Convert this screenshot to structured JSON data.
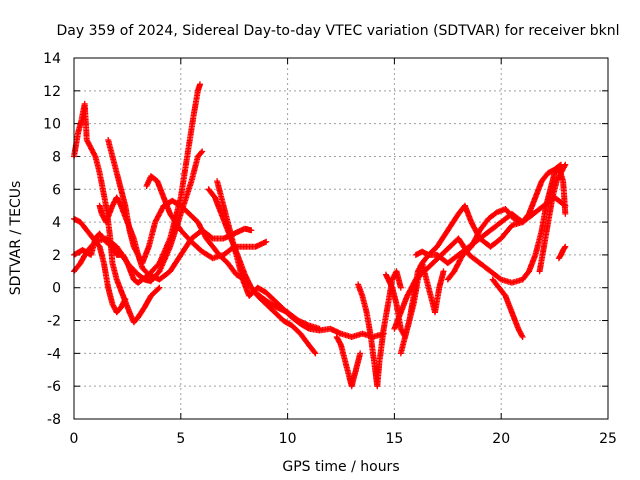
{
  "chart_data": {
    "type": "scatter",
    "title": "Day 359 of 2024, Sidereal Day-to-day VTEC variation (SDTVAR) for receiver bknl",
    "xlabel": "GPS time / hours",
    "ylabel": "SDTVAR / TECUs",
    "xlim": [
      0,
      25
    ],
    "ylim": [
      -8,
      14
    ],
    "xticks": [
      0,
      5,
      10,
      15,
      20,
      25
    ],
    "yticks": [
      -8,
      -6,
      -4,
      -2,
      0,
      2,
      4,
      6,
      8,
      10,
      12,
      14
    ],
    "grid": true,
    "marker": "+",
    "color": "#ff0000",
    "series": [
      {
        "name": "track-1",
        "points": [
          [
            0.0,
            8.0
          ],
          [
            0.2,
            9.5
          ],
          [
            0.35,
            10.2
          ],
          [
            0.5,
            11.2
          ],
          [
            0.6,
            9.0
          ],
          [
            0.8,
            8.5
          ],
          [
            1.0,
            8.0
          ],
          [
            1.2,
            7.0
          ],
          [
            1.5,
            5.0
          ],
          [
            1.7,
            3.0
          ],
          [
            1.8,
            1.5
          ],
          [
            2.0,
            0.5
          ],
          [
            2.3,
            -0.5
          ],
          [
            2.6,
            -1.5
          ],
          [
            2.8,
            -2.1
          ],
          [
            3.0,
            -1.8
          ],
          [
            3.3,
            -1.2
          ],
          [
            3.6,
            -0.5
          ],
          [
            4.0,
            0.0
          ]
        ]
      },
      {
        "name": "track-2",
        "points": [
          [
            0.0,
            4.2
          ],
          [
            0.3,
            4.0
          ],
          [
            0.6,
            3.5
          ],
          [
            0.9,
            3.0
          ],
          [
            1.2,
            2.5
          ],
          [
            1.4,
            1.5
          ],
          [
            1.6,
            0.0
          ],
          [
            1.8,
            -1.0
          ],
          [
            2.0,
            -1.5
          ],
          [
            2.2,
            -1.2
          ],
          [
            2.4,
            -0.7
          ]
        ]
      },
      {
        "name": "track-3",
        "points": [
          [
            0.0,
            1.0
          ],
          [
            0.3,
            1.5
          ],
          [
            0.6,
            2.2
          ],
          [
            1.0,
            2.8
          ],
          [
            1.5,
            3.0
          ],
          [
            2.0,
            2.5
          ],
          [
            2.5,
            1.5
          ],
          [
            3.0,
            0.8
          ],
          [
            3.3,
            0.5
          ],
          [
            3.6,
            0.4
          ],
          [
            4.0,
            1.0
          ],
          [
            4.5,
            2.5
          ],
          [
            5.0,
            4.5
          ],
          [
            5.5,
            6.5
          ],
          [
            5.8,
            8.0
          ],
          [
            6.0,
            8.3
          ]
        ]
      },
      {
        "name": "track-4",
        "points": [
          [
            0.0,
            2.0
          ],
          [
            0.4,
            2.3
          ],
          [
            0.8,
            2.0
          ],
          [
            1.0,
            3.0
          ],
          [
            1.2,
            3.3
          ],
          [
            1.5,
            2.8
          ],
          [
            1.8,
            2.5
          ],
          [
            2.0,
            2.0
          ],
          [
            2.3,
            2.0
          ],
          [
            2.5,
            1.5
          ],
          [
            2.8,
            0.5
          ],
          [
            3.0,
            0.3
          ],
          [
            3.5,
            0.8
          ],
          [
            4.0,
            1.5
          ],
          [
            4.5,
            3.0
          ],
          [
            5.0,
            5.5
          ],
          [
            5.3,
            8.0
          ],
          [
            5.6,
            10.5
          ],
          [
            5.8,
            12.0
          ],
          [
            5.9,
            12.4
          ]
        ]
      },
      {
        "name": "track-5",
        "points": [
          [
            1.2,
            5.0
          ],
          [
            1.3,
            4.5
          ],
          [
            1.5,
            4.0
          ],
          [
            1.8,
            5.0
          ],
          [
            2.0,
            5.5
          ],
          [
            2.2,
            5.0
          ],
          [
            2.5,
            4.0
          ],
          [
            2.8,
            3.0
          ],
          [
            3.0,
            2.0
          ],
          [
            3.2,
            1.5
          ],
          [
            3.5,
            2.5
          ],
          [
            3.8,
            4.0
          ],
          [
            4.2,
            5.0
          ],
          [
            4.6,
            5.3
          ],
          [
            5.0,
            5.0
          ],
          [
            5.4,
            4.5
          ],
          [
            5.8,
            4.0
          ],
          [
            6.2,
            3.0
          ],
          [
            6.8,
            2.0
          ],
          [
            7.2,
            1.5
          ],
          [
            7.6,
            0.8
          ],
          [
            8.0,
            0.5
          ],
          [
            8.5,
            -0.3
          ],
          [
            9.0,
            -0.8
          ],
          [
            9.5,
            -1.2
          ],
          [
            10.0,
            -1.5
          ],
          [
            10.5,
            -2.0
          ],
          [
            11.0,
            -2.3
          ],
          [
            11.5,
            -2.5
          ]
        ]
      },
      {
        "name": "track-6",
        "points": [
          [
            1.6,
            9.0
          ],
          [
            1.8,
            8.0
          ],
          [
            2.0,
            7.0
          ],
          [
            2.2,
            6.0
          ],
          [
            2.4,
            5.0
          ],
          [
            2.6,
            3.5
          ],
          [
            2.8,
            2.5
          ],
          [
            3.0,
            2.0
          ],
          [
            3.2,
            1.2
          ],
          [
            3.5,
            0.8
          ],
          [
            4.0,
            0.5
          ],
          [
            4.5,
            1.0
          ],
          [
            5.0,
            2.0
          ],
          [
            5.5,
            3.0
          ],
          [
            6.0,
            3.5
          ],
          [
            6.5,
            3.0
          ],
          [
            7.0,
            3.0
          ],
          [
            7.5,
            3.3
          ],
          [
            8.0,
            3.6
          ],
          [
            8.3,
            3.5
          ]
        ]
      },
      {
        "name": "track-7",
        "points": [
          [
            3.4,
            6.2
          ],
          [
            3.6,
            6.8
          ],
          [
            3.9,
            6.5
          ],
          [
            4.2,
            5.5
          ],
          [
            4.5,
            4.5
          ],
          [
            5.0,
            3.5
          ],
          [
            5.5,
            2.8
          ],
          [
            6.0,
            2.2
          ],
          [
            6.5,
            1.8
          ],
          [
            7.0,
            2.0
          ],
          [
            7.5,
            2.5
          ],
          [
            8.0,
            2.5
          ],
          [
            8.5,
            2.5
          ],
          [
            9.0,
            2.8
          ]
        ]
      },
      {
        "name": "track-8",
        "points": [
          [
            6.3,
            6.0
          ],
          [
            6.6,
            5.5
          ],
          [
            6.9,
            4.5
          ],
          [
            7.2,
            3.5
          ],
          [
            7.5,
            2.5
          ],
          [
            7.8,
            1.5
          ],
          [
            8.0,
            0.8
          ],
          [
            8.3,
            0.0
          ],
          [
            8.6,
            -0.5
          ],
          [
            9.0,
            -1.0
          ],
          [
            9.4,
            -1.5
          ],
          [
            9.8,
            -2.0
          ],
          [
            10.2,
            -2.3
          ],
          [
            10.6,
            -2.8
          ],
          [
            11.0,
            -3.5
          ],
          [
            11.3,
            -4.0
          ]
        ]
      },
      {
        "name": "track-9",
        "points": [
          [
            6.7,
            6.5
          ],
          [
            7.0,
            5.0
          ],
          [
            7.3,
            3.5
          ],
          [
            7.6,
            2.0
          ],
          [
            7.9,
            0.5
          ],
          [
            8.2,
            -0.5
          ],
          [
            8.6,
            0.0
          ],
          [
            9.0,
            -0.3
          ],
          [
            9.4,
            -0.8
          ],
          [
            9.8,
            -1.3
          ],
          [
            10.2,
            -1.8
          ],
          [
            10.6,
            -2.2
          ],
          [
            11.0,
            -2.5
          ],
          [
            11.5,
            -2.6
          ],
          [
            12.0,
            -2.5
          ],
          [
            12.5,
            -2.8
          ],
          [
            13.0,
            -3.0
          ],
          [
            13.5,
            -2.8
          ],
          [
            14.0,
            -3.0
          ],
          [
            14.5,
            -2.8
          ]
        ]
      },
      {
        "name": "track-10",
        "points": [
          [
            12.3,
            -3.0
          ],
          [
            12.5,
            -3.5
          ],
          [
            12.7,
            -4.5
          ],
          [
            12.9,
            -5.5
          ],
          [
            13.0,
            -6.0
          ],
          [
            13.2,
            -5.0
          ],
          [
            13.4,
            -4.0
          ]
        ]
      },
      {
        "name": "track-11",
        "points": [
          [
            13.3,
            0.2
          ],
          [
            13.5,
            -0.5
          ],
          [
            13.7,
            -1.5
          ],
          [
            13.9,
            -3.0
          ],
          [
            14.1,
            -5.0
          ],
          [
            14.2,
            -6.0
          ],
          [
            14.3,
            -4.5
          ],
          [
            14.5,
            -2.5
          ],
          [
            14.7,
            -1.0
          ],
          [
            14.9,
            0.5
          ],
          [
            15.1,
            1.0
          ],
          [
            15.3,
            0.0
          ]
        ]
      },
      {
        "name": "track-12",
        "points": [
          [
            14.6,
            0.8
          ],
          [
            14.9,
            0.0
          ],
          [
            15.1,
            -1.0
          ],
          [
            15.3,
            -2.5
          ],
          [
            15.5,
            -3.0
          ],
          [
            15.7,
            -2.0
          ],
          [
            15.9,
            -0.5
          ],
          [
            16.1,
            1.0
          ],
          [
            16.3,
            1.5
          ],
          [
            16.5,
            0.5
          ],
          [
            16.7,
            -0.5
          ],
          [
            16.9,
            -1.5
          ],
          [
            17.1,
            0.0
          ],
          [
            17.3,
            1.0
          ]
        ]
      },
      {
        "name": "track-13",
        "points": [
          [
            15.3,
            -4.0
          ],
          [
            15.5,
            -3.0
          ],
          [
            15.7,
            -2.0
          ],
          [
            15.9,
            -1.0
          ],
          [
            16.1,
            0.5
          ],
          [
            16.3,
            1.5
          ],
          [
            16.6,
            2.0
          ],
          [
            17.0,
            2.0
          ],
          [
            17.5,
            1.5
          ],
          [
            18.0,
            2.0
          ],
          [
            18.5,
            2.5
          ],
          [
            19.0,
            3.0
          ],
          [
            19.5,
            3.5
          ],
          [
            20.0,
            4.0
          ],
          [
            20.5,
            4.5
          ],
          [
            21.0,
            4.0
          ],
          [
            21.5,
            4.5
          ]
        ]
      },
      {
        "name": "track-14",
        "points": [
          [
            15.0,
            -2.5
          ],
          [
            15.3,
            -1.5
          ],
          [
            15.6,
            -0.5
          ],
          [
            16.0,
            0.5
          ],
          [
            16.4,
            1.0
          ],
          [
            16.8,
            1.5
          ],
          [
            17.2,
            2.0
          ],
          [
            17.6,
            2.5
          ],
          [
            18.0,
            3.0
          ],
          [
            18.5,
            2.0
          ],
          [
            19.0,
            1.5
          ],
          [
            19.5,
            1.0
          ],
          [
            20.0,
            0.5
          ],
          [
            20.5,
            0.3
          ],
          [
            21.0,
            0.5
          ]
        ]
      },
      {
        "name": "track-15",
        "points": [
          [
            16.0,
            2.0
          ],
          [
            16.3,
            2.2
          ],
          [
            16.6,
            2.0
          ],
          [
            17.0,
            2.5
          ],
          [
            17.5,
            3.5
          ],
          [
            18.0,
            4.5
          ],
          [
            18.3,
            5.0
          ],
          [
            18.6,
            4.0
          ],
          [
            19.0,
            3.0
          ],
          [
            19.5,
            2.5
          ],
          [
            20.0,
            3.0
          ],
          [
            20.5,
            3.8
          ],
          [
            21.0,
            4.0
          ],
          [
            21.5,
            4.5
          ],
          [
            22.0,
            5.0
          ],
          [
            22.5,
            5.5
          ],
          [
            23.0,
            5.0
          ]
        ]
      },
      {
        "name": "track-16",
        "points": [
          [
            17.5,
            0.5
          ],
          [
            17.8,
            1.0
          ],
          [
            18.2,
            2.0
          ],
          [
            18.6,
            2.5
          ],
          [
            19.0,
            3.5
          ],
          [
            19.4,
            4.2
          ],
          [
            19.8,
            4.6
          ],
          [
            20.2,
            4.8
          ],
          [
            20.6,
            4.2
          ],
          [
            21.0,
            4.0
          ],
          [
            21.3,
            4.5
          ],
          [
            21.6,
            5.5
          ],
          [
            21.9,
            6.5
          ],
          [
            22.2,
            7.0
          ],
          [
            22.5,
            7.2
          ],
          [
            22.8,
            7.5
          ]
        ]
      },
      {
        "name": "track-17",
        "points": [
          [
            19.6,
            0.5
          ],
          [
            19.9,
            0.0
          ],
          [
            20.2,
            -0.5
          ],
          [
            20.5,
            -1.5
          ],
          [
            20.8,
            -2.5
          ],
          [
            21.0,
            -3.0
          ]
        ]
      },
      {
        "name": "track-18",
        "points": [
          [
            21.0,
            0.5
          ],
          [
            21.3,
            1.0
          ],
          [
            21.6,
            2.0
          ],
          [
            21.9,
            3.5
          ],
          [
            22.1,
            5.0
          ],
          [
            22.3,
            6.0
          ],
          [
            22.5,
            7.0
          ],
          [
            22.7,
            7.3
          ],
          [
            22.9,
            6.5
          ],
          [
            23.0,
            4.5
          ]
        ]
      },
      {
        "name": "track-19",
        "points": [
          [
            21.8,
            1.0
          ],
          [
            22.0,
            2.5
          ],
          [
            22.2,
            4.0
          ],
          [
            22.4,
            5.5
          ],
          [
            22.6,
            6.5
          ],
          [
            22.8,
            7.0
          ],
          [
            23.0,
            7.5
          ]
        ]
      },
      {
        "name": "track-20",
        "points": [
          [
            22.7,
            1.8
          ],
          [
            22.8,
            2.0
          ],
          [
            22.9,
            2.3
          ],
          [
            23.0,
            2.5
          ]
        ]
      }
    ]
  }
}
